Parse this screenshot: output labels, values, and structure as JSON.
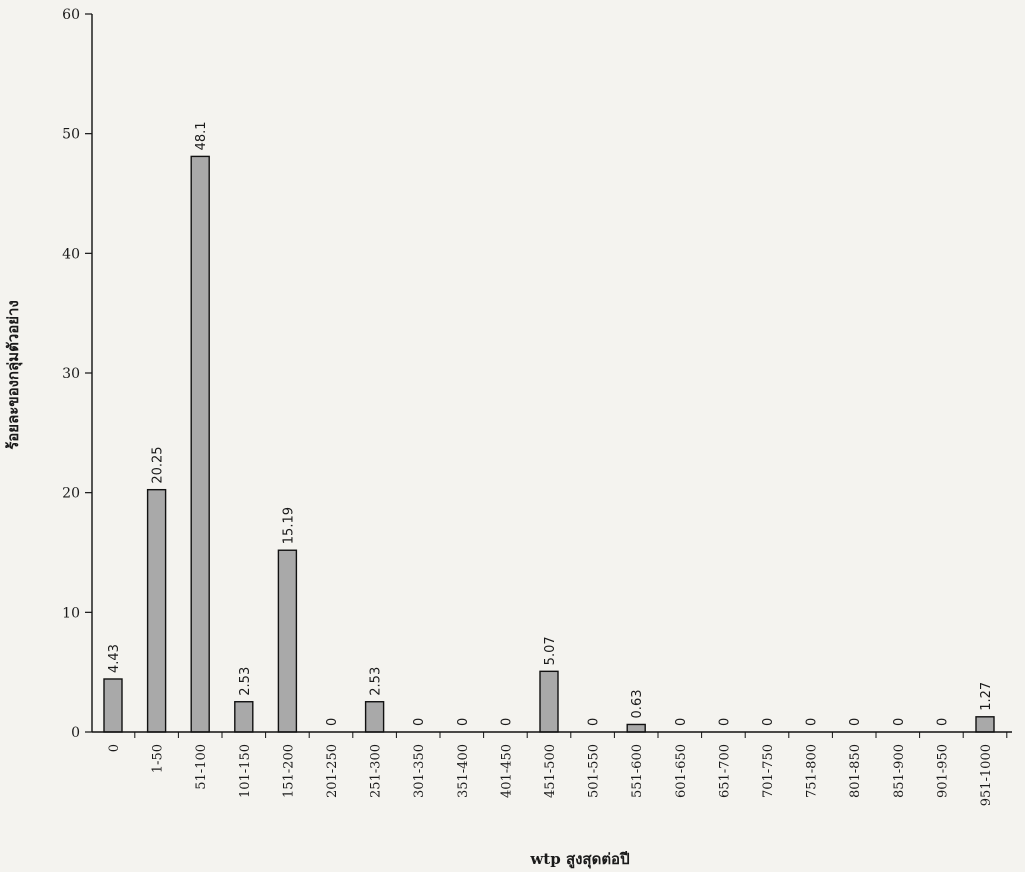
{
  "chart_data": {
    "type": "bar",
    "categories": [
      "0",
      "1-50",
      "51-100",
      "101-150",
      "151-200",
      "201-250",
      "251-300",
      "301-350",
      "351-400",
      "401-450",
      "451-500",
      "501-550",
      "551-600",
      "601-650",
      "651-700",
      "701-750",
      "751-800",
      "801-850",
      "851-900",
      "901-950",
      "951-1000"
    ],
    "values": [
      4.43,
      20.25,
      48.1,
      2.53,
      15.19,
      0,
      2.53,
      0,
      0,
      0,
      5.07,
      0,
      0.63,
      0,
      0,
      0,
      0,
      0,
      0,
      0,
      1.27
    ],
    "data_labels": [
      "4.43",
      "20.25",
      "48.1",
      "2.53",
      "15.19",
      "0",
      "2.53",
      "0",
      "0",
      "0",
      "5.07",
      "0",
      "0.63",
      "0",
      "0",
      "0",
      "0",
      "0",
      "0",
      "0",
      "1.27"
    ],
    "title": "",
    "xlabel": "wtp สูงสุดต่อปี",
    "ylabel": "ร้อยละของกลุ่มตัวอย่าง",
    "ylim": [
      0,
      60
    ],
    "yticks": [
      0,
      10,
      20,
      30,
      40,
      50,
      60
    ],
    "grid": false,
    "legend": "none",
    "bar_color": "#a9a9a9",
    "bar_edge_color": "#111111"
  }
}
